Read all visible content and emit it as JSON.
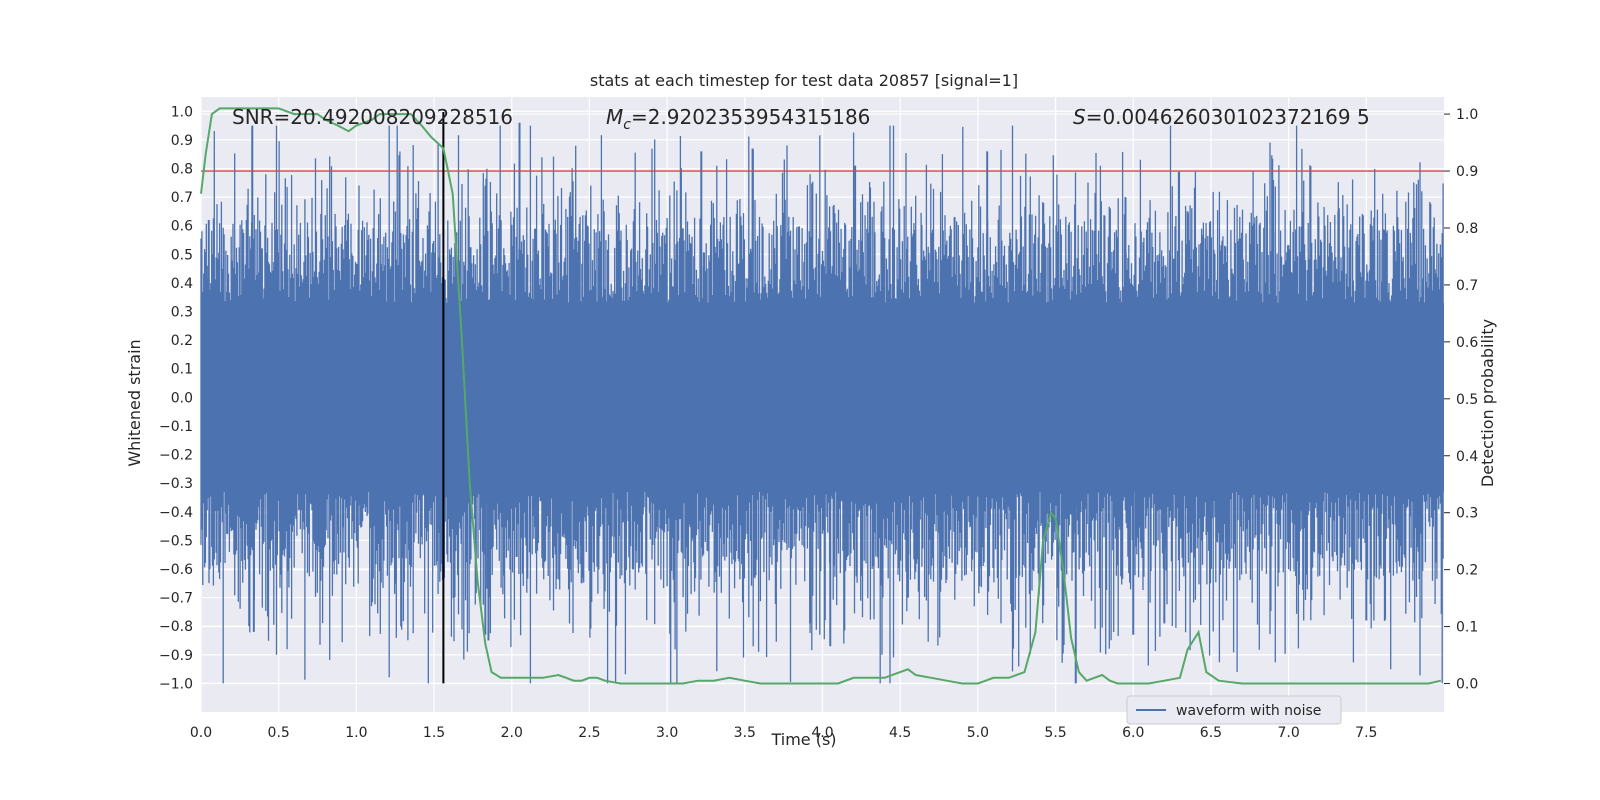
{
  "chart_data": {
    "type": "line",
    "title": "stats at each timestep for test data 20857 [signal=1]",
    "xlabel": "Time (s)",
    "ylabel": "Whitened strain",
    "y2label": "Detection probability",
    "xlim": [
      0,
      8
    ],
    "ylim": [
      -1.1,
      1.05
    ],
    "y2lim": [
      -0.05,
      1.03
    ],
    "xticks": [
      "0.0",
      "0.5",
      "1.0",
      "1.5",
      "2.0",
      "2.5",
      "3.0",
      "3.5",
      "4.0",
      "4.5",
      "5.0",
      "5.5",
      "6.0",
      "6.5",
      "7.0",
      "7.5"
    ],
    "yticks": [
      "1.0",
      "0.9",
      "0.8",
      "0.7",
      "0.6",
      "0.5",
      "0.4",
      "0.3",
      "0.2",
      "0.1",
      "0.0",
      "−0.1",
      "−0.2",
      "−0.3",
      "−0.4",
      "−0.5",
      "−0.6",
      "−0.7",
      "−0.8",
      "−0.9",
      "−1.0"
    ],
    "y2ticks": [
      "1.0",
      "0.9",
      "0.8",
      "0.7",
      "0.6",
      "0.5",
      "0.4",
      "0.3",
      "0.2",
      "0.1",
      "0.0"
    ],
    "grid": true,
    "legend": {
      "position": "bottom-right",
      "entries": [
        "waveform with noise"
      ]
    },
    "annotations": {
      "snr": "SNR=20.492008209228516",
      "mc_symbol": "M",
      "mc_sub": "c",
      "mc_value": "=2.9202353954315186",
      "s_symbol": "S",
      "s_value": "=0.004626030102372169 5"
    },
    "threshold_prob": 0.9,
    "vertical_line_time": 1.56,
    "waveform_envelope": {
      "description_free": true,
      "dense_band": [
        -0.33,
        0.33
      ],
      "peak_max": 0.95,
      "trough_min": -1.0
    },
    "series": [
      {
        "name": "waveform with noise",
        "color": "#4c72b0",
        "axis": "left",
        "spikes": [
          [
            0.33,
            0.95
          ],
          [
            0.34,
            -0.82
          ],
          [
            0.31,
            -0.8
          ],
          [
            2.05,
            0.96
          ],
          [
            3.22,
            0.86
          ],
          [
            3.55,
            0.87
          ],
          [
            4.21,
            0.81
          ],
          [
            4.05,
            -0.87
          ],
          [
            5.06,
            0.86
          ],
          [
            6.9,
            0.76
          ],
          [
            5.63,
            -1.0
          ],
          [
            6.0,
            -0.83
          ],
          [
            4.55,
            -0.7
          ],
          [
            3.92,
            -0.79
          ],
          [
            7.5,
            -0.78
          ],
          [
            1.47,
            0.65
          ],
          [
            2.15,
            0.59
          ],
          [
            7.7,
            0.63
          ],
          [
            1.85,
            -0.85
          ],
          [
            5.95,
            0.7
          ],
          [
            6.2,
            -0.79
          ],
          [
            1.83,
            -0.83
          ],
          [
            0.05,
            0.62
          ],
          [
            2.45,
            -0.65
          ],
          [
            4.85,
            0.63
          ],
          [
            6.35,
            0.65
          ],
          [
            7.32,
            0.65
          ],
          [
            5.85,
            0.66
          ]
        ]
      },
      {
        "name": "",
        "color": "#55a868",
        "axis": "right",
        "x": [
          0.0,
          0.03,
          0.07,
          0.12,
          0.2,
          0.3,
          0.4,
          0.5,
          0.6,
          0.7,
          0.75,
          0.8,
          0.88,
          0.95,
          1.0,
          1.1,
          1.15,
          1.25,
          1.35,
          1.42,
          1.48,
          1.56,
          1.62,
          1.68,
          1.73,
          1.78,
          1.83,
          1.87,
          1.93,
          2.0,
          2.05,
          2.1,
          2.15,
          2.2,
          2.3,
          2.35,
          2.4,
          2.45,
          2.5,
          2.55,
          2.6,
          2.7,
          2.8,
          2.9,
          3.0,
          3.1,
          3.2,
          3.3,
          3.4,
          3.5,
          3.6,
          3.7,
          3.8,
          3.9,
          4.0,
          4.1,
          4.2,
          4.3,
          4.4,
          4.5,
          4.55,
          4.6,
          4.7,
          4.8,
          4.9,
          5.0,
          5.05,
          5.1,
          5.2,
          5.3,
          5.37,
          5.42,
          5.47,
          5.5,
          5.55,
          5.6,
          5.65,
          5.7,
          5.75,
          5.8,
          5.85,
          5.9,
          5.95,
          6.0,
          6.1,
          6.2,
          6.3,
          6.35,
          6.42,
          6.47,
          6.55,
          6.7,
          6.9,
          7.2,
          7.5,
          7.7,
          7.9,
          7.98
        ],
        "values": [
          0.86,
          0.93,
          1.0,
          1.01,
          1.01,
          1.01,
          1.01,
          1.01,
          1.0,
          1.0,
          1.0,
          0.99,
          0.98,
          0.97,
          0.98,
          0.99,
          1.0,
          1.0,
          1.0,
          0.98,
          0.96,
          0.94,
          0.86,
          0.6,
          0.35,
          0.18,
          0.07,
          0.02,
          0.01,
          0.01,
          0.01,
          0.01,
          0.01,
          0.01,
          0.015,
          0.01,
          0.005,
          0.005,
          0.01,
          0.01,
          0.005,
          0.0,
          0.0,
          0.0,
          0.0,
          0.0,
          0.005,
          0.005,
          0.01,
          0.005,
          0.0,
          0.0,
          0.0,
          0.0,
          0.0,
          0.0,
          0.01,
          0.01,
          0.01,
          0.02,
          0.025,
          0.015,
          0.01,
          0.005,
          0.0,
          0.0,
          0.005,
          0.01,
          0.01,
          0.02,
          0.09,
          0.25,
          0.3,
          0.29,
          0.2,
          0.08,
          0.02,
          0.005,
          0.01,
          0.015,
          0.005,
          0.0,
          0.0,
          0.0,
          0.0,
          0.005,
          0.01,
          0.06,
          0.09,
          0.02,
          0.005,
          0.0,
          0.0,
          0.0,
          0.0,
          0.0,
          0.0,
          0.005
        ]
      }
    ]
  }
}
